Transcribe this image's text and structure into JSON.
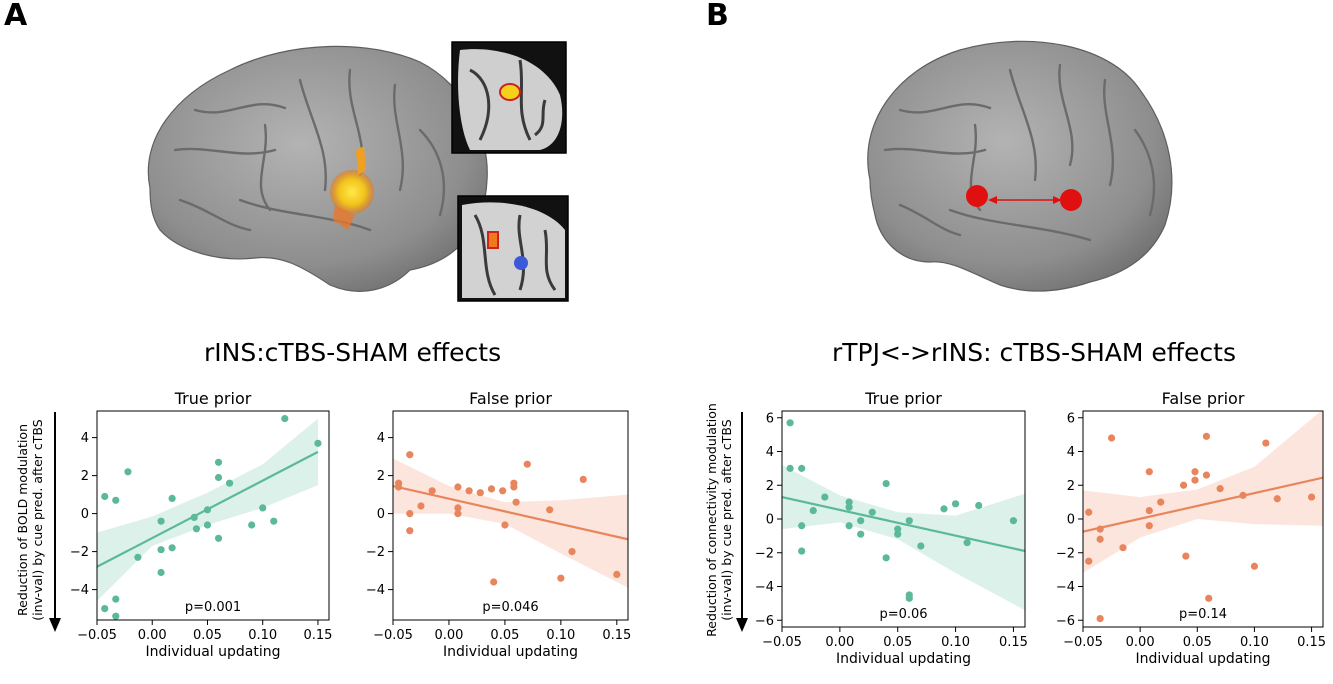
{
  "panels": {
    "A": {
      "letter": "A",
      "section_title": "rINS:cTBS-SHAM effects",
      "ylabel_line1": "Reduction of BOLD modulation",
      "ylabel_line2": "(inv-val) by cue pred. after cTBS"
    },
    "B": {
      "letter": "B",
      "section_title": "rTPJ<->rINS: cTBS-SHAM effects",
      "ylabel_line1": "Reduction of connectivity modulation",
      "ylabel_line2": "(inv-val) by cue pred. after cTBS"
    }
  },
  "colors": {
    "green": "#5bb99a",
    "green_band": "#d6efe6",
    "orange": "#e8855c",
    "orange_band": "#fbe1d7",
    "brain": "#8e8e8e",
    "activation": "#f2d21a",
    "node": "#e01010"
  },
  "chart_data": [
    {
      "id": "A-true",
      "type": "scatter",
      "title": "True prior",
      "xlabel": "Individual updating",
      "ylabel": "Reduction of BOLD modulation (inv-val) by cue pred. after cTBS",
      "xlim": [
        -0.05,
        0.16
      ],
      "ylim": [
        -5.6,
        5.4
      ],
      "xticks": [
        -0.05,
        0.0,
        0.05,
        0.1,
        0.15
      ],
      "xtick_labels": [
        "−0.05",
        "0.00",
        "0.05",
        "0.10",
        "0.15"
      ],
      "yticks": [
        -4,
        -2,
        0,
        2,
        4
      ],
      "ytick_labels": [
        "−4",
        "−2",
        "0",
        "2",
        "4"
      ],
      "annotation": "p=0.001",
      "color": "green",
      "points": [
        [
          -0.043,
          0.9
        ],
        [
          -0.033,
          0.7
        ],
        [
          -0.022,
          2.2
        ],
        [
          -0.043,
          -5.0
        ],
        [
          -0.033,
          -4.5
        ],
        [
          -0.033,
          -5.4
        ],
        [
          -0.013,
          -2.3
        ],
        [
          0.008,
          -0.4
        ],
        [
          0.008,
          -1.9
        ],
        [
          0.008,
          -3.1
        ],
        [
          0.018,
          0.8
        ],
        [
          0.018,
          -1.8
        ],
        [
          0.038,
          -0.2
        ],
        [
          0.04,
          -0.8
        ],
        [
          0.05,
          0.2
        ],
        [
          0.05,
          -0.6
        ],
        [
          0.06,
          2.7
        ],
        [
          0.06,
          1.9
        ],
        [
          0.06,
          -1.3
        ],
        [
          0.07,
          1.6
        ],
        [
          0.09,
          -0.6
        ],
        [
          0.1,
          0.3
        ],
        [
          0.11,
          -0.4
        ],
        [
          0.12,
          5.0
        ],
        [
          0.15,
          3.7
        ]
      ],
      "fit": [
        [
          -0.05,
          -2.8
        ],
        [
          0.15,
          3.25
        ]
      ],
      "ci": {
        "x": [
          -0.05,
          0.0,
          0.05,
          0.1,
          0.15
        ],
        "lower": [
          -4.6,
          -1.7,
          -0.6,
          0.3,
          1.5
        ],
        "upper": [
          -1.0,
          -0.15,
          1.1,
          2.6,
          5.0
        ]
      }
    },
    {
      "id": "A-false",
      "type": "scatter",
      "title": "False prior",
      "xlabel": "Individual updating",
      "xlim": [
        -0.05,
        0.16
      ],
      "ylim": [
        -5.6,
        5.4
      ],
      "xticks": [
        -0.05,
        0.0,
        0.05,
        0.1,
        0.15
      ],
      "xtick_labels": [
        "−0.05",
        "0.00",
        "0.05",
        "0.10",
        "0.15"
      ],
      "yticks": [
        -4,
        -2,
        0,
        2,
        4
      ],
      "ytick_labels": [
        "−4",
        "−2",
        "0",
        "2",
        "4"
      ],
      "annotation": "p=0.046",
      "color": "orange",
      "points": [
        [
          -0.045,
          1.6
        ],
        [
          -0.045,
          1.4
        ],
        [
          -0.035,
          3.1
        ],
        [
          -0.035,
          0.0
        ],
        [
          -0.035,
          -0.9
        ],
        [
          -0.025,
          0.4
        ],
        [
          -0.015,
          1.2
        ],
        [
          0.008,
          1.4
        ],
        [
          0.008,
          0.0
        ],
        [
          0.008,
          0.3
        ],
        [
          0.018,
          1.2
        ],
        [
          0.028,
          1.1
        ],
        [
          0.038,
          1.3
        ],
        [
          0.04,
          -3.6
        ],
        [
          0.048,
          1.2
        ],
        [
          0.05,
          -0.6
        ],
        [
          0.058,
          1.6
        ],
        [
          0.058,
          1.4
        ],
        [
          0.06,
          0.6
        ],
        [
          0.07,
          2.6
        ],
        [
          0.09,
          0.2
        ],
        [
          0.1,
          -3.4
        ],
        [
          0.11,
          -2.0
        ],
        [
          0.12,
          1.8
        ],
        [
          0.15,
          -3.2
        ]
      ],
      "fit": [
        [
          -0.05,
          1.45
        ],
        [
          0.16,
          -1.35
        ]
      ],
      "ci": {
        "x": [
          -0.05,
          0.0,
          0.05,
          0.1,
          0.16
        ],
        "lower": [
          0.0,
          0.0,
          -0.55,
          -2.1,
          -3.9
        ],
        "upper": [
          2.9,
          1.45,
          0.6,
          0.7,
          1.0
        ]
      }
    },
    {
      "id": "B-true",
      "type": "scatter",
      "title": "True prior",
      "xlabel": "Individual updating",
      "ylabel": "Reduction of connectivity modulation (inv-val) by cue pred. after cTBS",
      "xlim": [
        -0.05,
        0.16
      ],
      "ylim": [
        -6.4,
        6.4
      ],
      "xticks": [
        -0.05,
        0.0,
        0.05,
        0.1,
        0.15
      ],
      "xtick_labels": [
        "−0.05",
        "0.00",
        "0.05",
        "0.10",
        "0.15"
      ],
      "yticks": [
        -6,
        -4,
        -2,
        0,
        2,
        4,
        6
      ],
      "ytick_labels": [
        "−6",
        "−4",
        "−2",
        "0",
        "2",
        "4",
        "6"
      ],
      "annotation": "p=0.06",
      "color": "green",
      "points": [
        [
          -0.043,
          5.7
        ],
        [
          -0.043,
          3.0
        ],
        [
          -0.033,
          3.0
        ],
        [
          -0.033,
          -0.4
        ],
        [
          -0.033,
          -1.9
        ],
        [
          -0.023,
          0.5
        ],
        [
          -0.013,
          1.3
        ],
        [
          0.008,
          1.0
        ],
        [
          0.008,
          0.7
        ],
        [
          0.008,
          -0.4
        ],
        [
          0.018,
          -0.1
        ],
        [
          0.018,
          -0.9
        ],
        [
          0.028,
          0.4
        ],
        [
          0.04,
          2.1
        ],
        [
          0.04,
          -2.3
        ],
        [
          0.05,
          -0.6
        ],
        [
          0.05,
          -0.9
        ],
        [
          0.06,
          -4.5
        ],
        [
          0.06,
          -4.7
        ],
        [
          0.06,
          -0.1
        ],
        [
          0.07,
          -1.6
        ],
        [
          0.09,
          0.6
        ],
        [
          0.1,
          0.9
        ],
        [
          0.11,
          -1.4
        ],
        [
          0.12,
          0.8
        ],
        [
          0.15,
          -0.1
        ]
      ],
      "fit": [
        [
          -0.05,
          1.3
        ],
        [
          0.16,
          -1.9
        ]
      ],
      "ci": {
        "x": [
          -0.05,
          0.0,
          0.05,
          0.1,
          0.16
        ],
        "lower": [
          -0.6,
          -0.2,
          -1.2,
          -3.2,
          -5.4
        ],
        "upper": [
          3.2,
          1.4,
          0.4,
          0.2,
          1.5
        ]
      }
    },
    {
      "id": "B-false",
      "type": "scatter",
      "title": "False prior",
      "xlabel": "Individual updating",
      "xlim": [
        -0.05,
        0.16
      ],
      "ylim": [
        -6.4,
        6.4
      ],
      "xticks": [
        -0.05,
        0.0,
        0.05,
        0.1,
        0.15
      ],
      "xtick_labels": [
        "−0.05",
        "0.00",
        "0.05",
        "0.10",
        "0.15"
      ],
      "yticks": [
        -6,
        -4,
        -2,
        0,
        2,
        4,
        6
      ],
      "ytick_labels": [
        "−6",
        "−4",
        "−2",
        "0",
        "2",
        "4",
        "6"
      ],
      "annotation": "p=0.14",
      "color": "orange",
      "points": [
        [
          -0.045,
          0.4
        ],
        [
          -0.045,
          -2.5
        ],
        [
          -0.035,
          -0.6
        ],
        [
          -0.035,
          -1.2
        ],
        [
          -0.035,
          -5.9
        ],
        [
          -0.025,
          4.8
        ],
        [
          -0.015,
          -1.7
        ],
        [
          0.008,
          2.8
        ],
        [
          0.008,
          0.5
        ],
        [
          0.008,
          -0.4
        ],
        [
          0.018,
          1.0
        ],
        [
          0.038,
          2.0
        ],
        [
          0.04,
          -2.2
        ],
        [
          0.048,
          2.8
        ],
        [
          0.048,
          2.3
        ],
        [
          0.058,
          4.9
        ],
        [
          0.058,
          2.6
        ],
        [
          0.06,
          -4.7
        ],
        [
          0.07,
          1.8
        ],
        [
          0.09,
          1.4
        ],
        [
          0.1,
          -2.8
        ],
        [
          0.11,
          4.5
        ],
        [
          0.12,
          1.2
        ],
        [
          0.15,
          1.3
        ]
      ],
      "fit": [
        [
          -0.05,
          -0.75
        ],
        [
          0.16,
          2.45
        ]
      ],
      "ci": {
        "x": [
          -0.05,
          0.0,
          0.05,
          0.1,
          0.16
        ],
        "lower": [
          -3.2,
          -1.1,
          0.0,
          -0.3,
          -0.4
        ],
        "upper": [
          1.7,
          1.3,
          1.75,
          3.1,
          6.5
        ]
      }
    }
  ]
}
